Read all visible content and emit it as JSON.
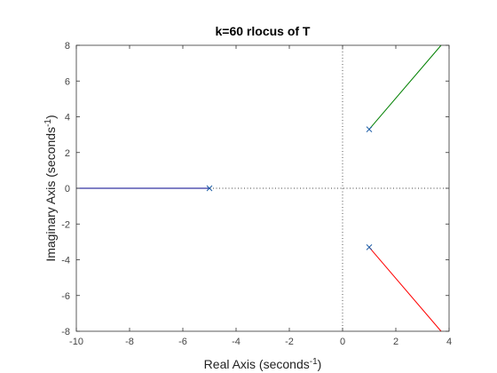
{
  "chart_data": {
    "type": "line",
    "title": "k=60 rlocus of T",
    "xlabel": {
      "main": "Real Axis (seconds",
      "sup": "-1",
      "close": ")"
    },
    "ylabel": {
      "main": "Imaginary Axis (seconds",
      "sup": "-1",
      "close": ")"
    },
    "xlim": [
      -10,
      4
    ],
    "ylim": [
      -8,
      8
    ],
    "xticks": [
      -10,
      -8,
      -6,
      -4,
      -2,
      0,
      2,
      4
    ],
    "yticks": [
      -8,
      -6,
      -4,
      -2,
      0,
      2,
      4,
      6,
      8
    ],
    "xtick_labels": [
      "-10",
      "-8",
      "-6",
      "-4",
      "-2",
      "0",
      "2",
      "4"
    ],
    "ytick_labels": [
      "-8",
      "-6",
      "-4",
      "-2",
      "0",
      "2",
      "4",
      "6",
      "8"
    ],
    "grid": false,
    "reference_lines": [
      {
        "orientation": "vertical",
        "value": 0,
        "style": "dotted"
      },
      {
        "orientation": "horizontal",
        "value": 0,
        "style": "dotted"
      }
    ],
    "series": [
      {
        "color": "#00008b",
        "points": [
          [
            -5,
            0
          ],
          [
            -10,
            0
          ]
        ]
      },
      {
        "color": "#008000",
        "points": [
          [
            1,
            3.3
          ],
          [
            3.7,
            8
          ]
        ]
      },
      {
        "color": "#ff0000",
        "points": [
          [
            1,
            -3.3
          ],
          [
            3.7,
            -8
          ]
        ]
      }
    ],
    "poles": {
      "color": "#1f5fa8",
      "marker": "x",
      "points": [
        [
          -5,
          0
        ],
        [
          1,
          3.3
        ],
        [
          1,
          -3.3
        ]
      ]
    }
  }
}
